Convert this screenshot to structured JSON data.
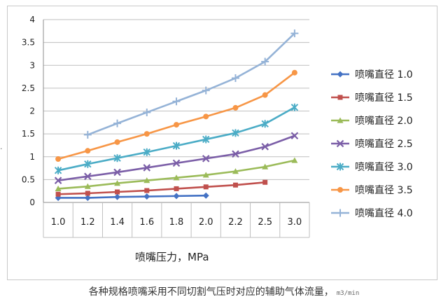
{
  "chart_data": {
    "type": "line",
    "categories": [
      "1.0",
      "1.2",
      "1.4",
      "1.6",
      "1.8",
      "2.0",
      "2.2",
      "2.5",
      "3.0"
    ],
    "yticks": [
      "0",
      "0.5",
      "1",
      "1.5",
      "2",
      "2.5",
      "3",
      "3.5",
      "4"
    ],
    "ylim": [
      0,
      4
    ],
    "grid": true,
    "legend_position": "right",
    "xlabel": "喷嘴压力，MPa",
    "ylabel": "",
    "series": [
      {
        "name": "喷嘴直径  1.0",
        "color": "#4472c4",
        "marker": "diamond",
        "values": [
          0.1,
          0.1,
          0.12,
          0.13,
          0.14,
          0.15,
          null,
          null,
          null
        ]
      },
      {
        "name": "喷嘴直径  1.5",
        "color": "#c0504d",
        "marker": "square",
        "values": [
          0.18,
          0.2,
          0.23,
          0.26,
          0.3,
          0.34,
          0.38,
          0.44,
          null
        ]
      },
      {
        "name": "喷嘴直径  2.0",
        "color": "#9bbb59",
        "marker": "triangle",
        "values": [
          0.3,
          0.35,
          0.42,
          0.48,
          0.54,
          0.6,
          0.68,
          0.78,
          0.92
        ]
      },
      {
        "name": "喷嘴直径  2.5",
        "color": "#7b5ea7",
        "marker": "x",
        "values": [
          0.48,
          0.57,
          0.66,
          0.76,
          0.86,
          0.96,
          1.06,
          1.22,
          1.46
        ]
      },
      {
        "name": "喷嘴直径  3.0",
        "color": "#4bacc6",
        "marker": "star",
        "values": [
          0.7,
          0.84,
          0.97,
          1.1,
          1.24,
          1.38,
          1.52,
          1.72,
          2.08
        ]
      },
      {
        "name": "喷嘴直径  3.5",
        "color": "#f79646",
        "marker": "circle",
        "values": [
          0.95,
          1.13,
          1.32,
          1.5,
          1.7,
          1.88,
          2.07,
          2.35,
          2.84
        ]
      },
      {
        "name": "喷嘴直径  4.0",
        "color": "#95b3d7",
        "marker": "plus",
        "values": [
          null,
          1.48,
          1.73,
          1.97,
          2.21,
          2.45,
          2.72,
          3.08,
          3.7
        ]
      }
    ]
  },
  "caption": "各种规格喷嘴采用不同切割气压时对应的辅助气体流量，",
  "caption_unit": "m3/min",
  "side_mark": "·"
}
